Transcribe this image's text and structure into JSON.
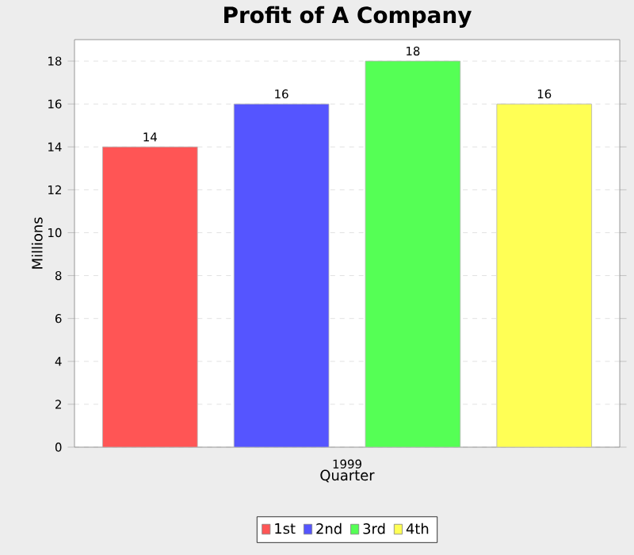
{
  "chart_data": {
    "type": "bar",
    "title": "Profit of A Company",
    "xlabel": "Quarter",
    "ylabel": "Millions",
    "categories": [
      "1999"
    ],
    "series": [
      {
        "name": "1st",
        "color": "#ff5555",
        "values": [
          14
        ]
      },
      {
        "name": "2nd",
        "color": "#5555ff",
        "values": [
          16
        ]
      },
      {
        "name": "3rd",
        "color": "#55ff55",
        "values": [
          18
        ]
      },
      {
        "name": "4th",
        "color": "#ffff55",
        "values": [
          16
        ]
      }
    ],
    "ylim": [
      0,
      19
    ],
    "yticks": [
      0,
      2,
      4,
      6,
      8,
      10,
      12,
      14,
      16,
      18
    ],
    "grid": "y",
    "legend": "bottom",
    "data_labels": true
  }
}
